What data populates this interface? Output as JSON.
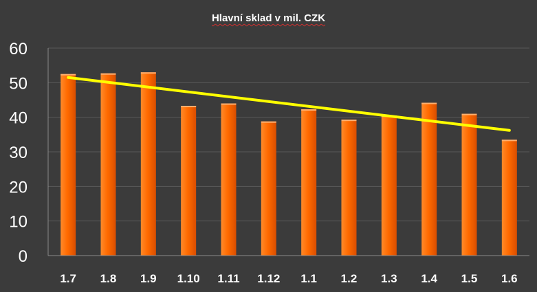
{
  "chart_data": {
    "type": "bar",
    "title": "Hlavní sklad v mil. CZK",
    "xlabel": "",
    "ylabel": "",
    "categories": [
      "1.7",
      "1.8",
      "1.9",
      "1.10",
      "1.11",
      "1.12",
      "1.1",
      "1.2",
      "1.3",
      "1.4",
      "1.5",
      "1.6"
    ],
    "series": [
      {
        "values": [
          52.5,
          52.7,
          53.0,
          43.3,
          44.0,
          38.8,
          42.3,
          39.3,
          40.5,
          44.2,
          41.0,
          33.5
        ]
      }
    ],
    "trendline": {
      "type": "linear",
      "start": 51.5,
      "end": 36.2,
      "color": "#ffff00"
    },
    "ylim": [
      0,
      60
    ],
    "yticks": [
      0,
      10,
      20,
      30,
      40,
      50,
      60
    ],
    "grid": true,
    "legend": "none",
    "colors": {
      "background": "#3b3b3b",
      "bar": "#ff6a00",
      "grid": "#5a5a5a",
      "text": "#ffffff"
    }
  }
}
